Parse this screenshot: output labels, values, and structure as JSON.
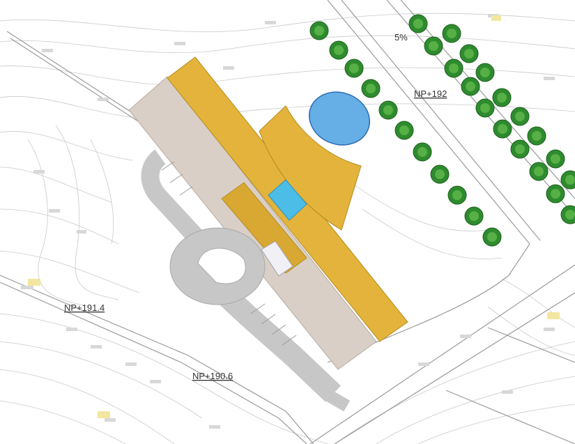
{
  "map": {
    "labels": {
      "slope": "5%",
      "level_top": "NP+192",
      "level_left": "NP+191.4",
      "level_bottom": "NP+190.6"
    },
    "colors": {
      "building_roof": "#e3b33b",
      "paving": "#d9cfc6",
      "road": "#c7c7c7",
      "water": "#66aee6",
      "pool": "#4bbde6",
      "trees": "#2e8b2e"
    },
    "icons": [
      "tree-icon"
    ]
  }
}
